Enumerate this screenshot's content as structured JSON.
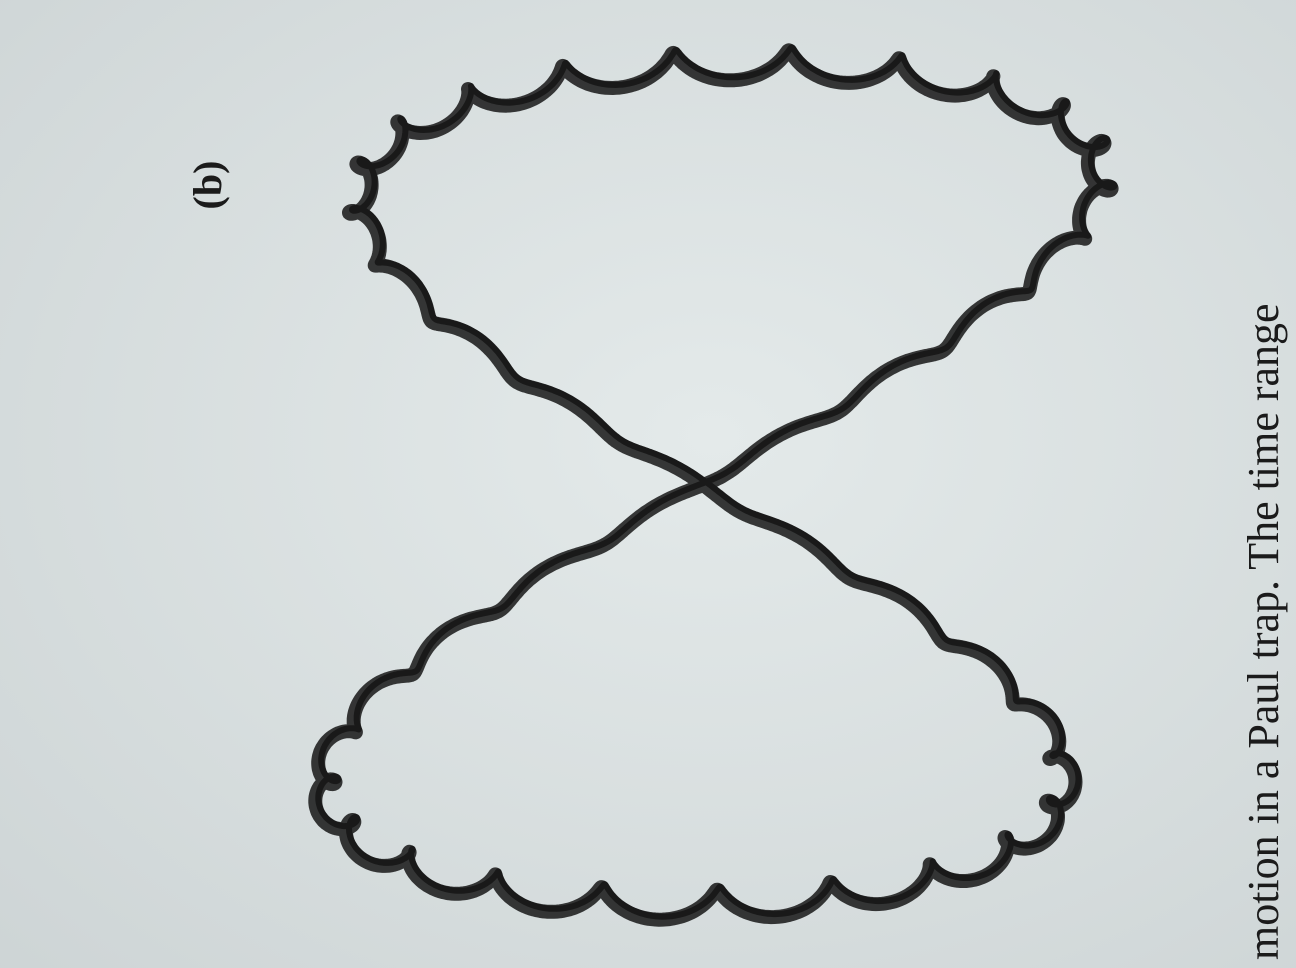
{
  "figure": {
    "label": "(b)"
  },
  "caption": "motion in a Paul trap. The time range"
}
